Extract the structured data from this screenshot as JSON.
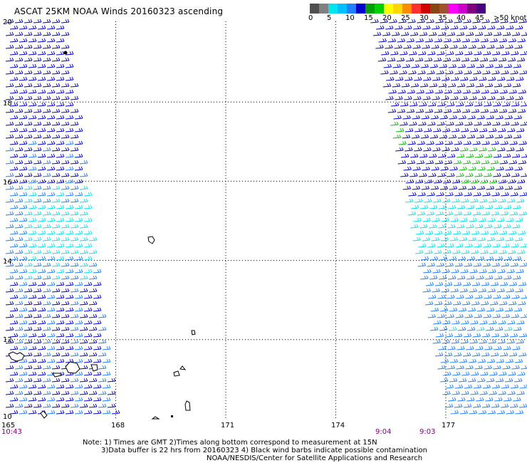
{
  "title": "ASCAT 25KM NOAA Winds 20160323 ascending",
  "colorbar": {
    "colors": [
      "#505050",
      "#808080",
      "#00e5ee",
      "#00bfff",
      "#1e7fff",
      "#0000cd",
      "#00a000",
      "#00d000",
      "#ffff00",
      "#ffd700",
      "#ff8c00",
      "#ff3030",
      "#d00000",
      "#8b4513",
      "#a0522d",
      "#ff00ff",
      "#cc00cc",
      "#800080",
      "#4b0082"
    ],
    "labels": [
      {
        "text": "0",
        "at": 0
      },
      {
        "text": "5",
        "at": 2
      },
      {
        "text": "10",
        "at": 4
      },
      {
        "text": "15",
        "at": 6
      },
      {
        "text": "20",
        "at": 8
      },
      {
        "text": "25",
        "at": 10
      },
      {
        "text": "30",
        "at": 12
      },
      {
        "text": "35",
        "at": 14
      },
      {
        "text": "40",
        "at": 16
      },
      {
        "text": "45",
        "at": 18
      },
      {
        "text": ">50 knots",
        "at": 20
      }
    ]
  },
  "latitudes": [
    "20",
    "18",
    "16",
    "14",
    "12",
    "10"
  ],
  "longitudes": [
    "165",
    "168",
    "171",
    "174",
    "177"
  ],
  "times": [
    "10:43",
    "9:04",
    "9:03"
  ],
  "notes": {
    "line1": "Note: 1) Times are GMT 2)Times along bottom correspond to measurement at 15N",
    "line2": "3)Data buffer is 22 hrs from 20160323 4) Black wind barbs indicate possible contamination",
    "line3": "NOAA/NESDIS/Center for Satellite Applications and Research"
  },
  "map": {
    "lon_range": [
      165,
      178.8
    ],
    "lat_range": [
      10,
      20
    ],
    "wind_colors": {
      "calm": "#00e5ee",
      "light": "#1e7fff",
      "moderate": "#0000cd",
      "strong": "#00c000"
    }
  }
}
